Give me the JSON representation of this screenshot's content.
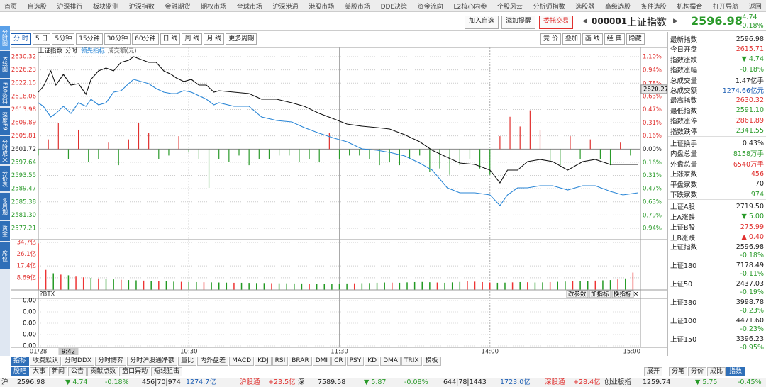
{
  "menu": [
    "首页",
    "自选股",
    "沪深排行",
    "板块监测",
    "沪深指数",
    "金融期货",
    "期权市场",
    "全球市场",
    "沪深港通",
    "港股市场",
    "美股市场",
    "DDE决策",
    "资金流向",
    "L2核心内参",
    "个股风云",
    "分析师指数",
    "选股器",
    "高级选股",
    "条件选股",
    "机构撮合",
    "打开导航",
    "返回"
  ],
  "sidebar_tabs": [
    "分时图",
    "K线图",
    "F10资料",
    "深度F9",
    "分时成交",
    "分价表",
    "多周期",
    "资金",
    "席位"
  ],
  "sidebar_selected": 0,
  "period_tabs": [
    "分 时",
    "5 日",
    "5分钟",
    "15分钟",
    "30分钟",
    "60分钟",
    "日 线",
    "周 线",
    "月 线",
    "更多周期"
  ],
  "period_selected": 0,
  "header": {
    "buttons": [
      "加入自选",
      "添加提醒",
      "委托交易"
    ],
    "code": "000001",
    "name": "上证指数",
    "price": "2596.98",
    "change": "-4.74",
    "change_pct": "-0.18%"
  },
  "tool_buttons": [
    "竞 价",
    "叠加",
    "画 线",
    "经 典",
    "隐藏"
  ],
  "chart_data": {
    "type": "line",
    "subtitle": "分时",
    "up_color": "#e0302e",
    "down_color": "#2a9a2a",
    "xlim": [
      0,
      240
    ],
    "xticks": [
      {
        "value": 0,
        "label": "01/28"
      },
      {
        "value": 60,
        "label": "10:30"
      },
      {
        "value": 120,
        "label": "11:30"
      },
      {
        "value": 180,
        "label": "14:00"
      },
      {
        "value": 240,
        "label": "15:00"
      }
    ],
    "cursor": {
      "value": 12,
      "label": "9:42"
    },
    "hover_value": 2620.27,
    "ylim": [
      2577.21,
      2630.32
    ],
    "yticks": [
      2630.32,
      2626.23,
      2622.15,
      2618.06,
      2613.98,
      2609.89,
      2605.81,
      2601.72,
      2597.64,
      2593.55,
      2589.47,
      2585.38,
      {
        "value": 2581.3,
        "label": "2581.30"
      },
      2577.21
    ],
    "y2lim": [
      -0.94,
      1.1
    ],
    "y2ticks": [
      {
        "value": 1.1,
        "label": "1.10%"
      },
      {
        "value": 0.94,
        "label": "0.94%"
      },
      {
        "value": 0.78,
        "label": "0.78%"
      },
      {
        "value": 0.63,
        "label": "0.63%"
      },
      {
        "value": 0.47,
        "label": "0.47%"
      },
      {
        "value": 0.31,
        "label": "0.31%"
      },
      {
        "value": 0.16,
        "label": "0.16%"
      },
      {
        "value": 0,
        "label": "0.00%"
      },
      {
        "value": -0.16,
        "label": "0.16%"
      },
      {
        "value": -0.31,
        "label": "0.31%"
      },
      {
        "value": -0.47,
        "label": "0.47%"
      },
      {
        "value": -0.63,
        "label": "0.63%"
      },
      {
        "value": -0.79,
        "label": "0.79%"
      },
      {
        "value": -0.94,
        "label": "0.94%"
      }
    ],
    "x": [
      0,
      2,
      5,
      7,
      10,
      13,
      16,
      19,
      21,
      24,
      27,
      30,
      33,
      36,
      38,
      41,
      44,
      47,
      50,
      53,
      55,
      58,
      61,
      64,
      67,
      70,
      72,
      78,
      84,
      89,
      95,
      101,
      106,
      112,
      118,
      123,
      129,
      135,
      140,
      146,
      152,
      157,
      163,
      168,
      174,
      180,
      184,
      187,
      191,
      195,
      200,
      205,
      211,
      217,
      222,
      228,
      233,
      239
    ],
    "series": [
      {
        "name": "上证指数",
        "color": "#111111",
        "values": [
          2619.35,
          2621.1,
          2625.93,
          2621.54,
          2624.83,
          2621.54,
          2621.98,
          2618.69,
          2623.3,
          2625.93,
          2626.81,
          2625.93,
          2628.56,
          2629.22,
          2630.32,
          2629.44,
          2628.56,
          2628.56,
          2625.93,
          2624.83,
          2623.74,
          2622.64,
          2623.3,
          2621.54,
          2621.54,
          2619.35,
          2619.79,
          2619.35,
          2618.91,
          2617.15,
          2617.15,
          2616.06,
          2614.96,
          2612.76,
          2611.01,
          2609.47,
          2608.81,
          2608.37,
          2607.93,
          2606.18,
          2603.98,
          2601.35,
          2599.15,
          2597.4,
          2596.96,
          2595.21,
          2591.26,
          2595.21,
          2595.21,
          2597.84,
          2598.5,
          2597.84,
          2595.21,
          2597.84,
          2598.5,
          2596.96,
          2596.96,
          2596.98
        ]
      },
      {
        "name": "领先指标",
        "color": "#2a86d6",
        "values": [
          2616.06,
          2614.96,
          2611.67,
          2612.76,
          2614.96,
          2612.76,
          2616.06,
          2614.96,
          2617.15,
          2615.4,
          2616.06,
          2619.35,
          2619.79,
          2621.98,
          2623.3,
          2622.64,
          2621.98,
          2620.44,
          2619.35,
          2618.91,
          2618.91,
          2619.79,
          2619.35,
          2618.25,
          2617.15,
          2615.4,
          2616.06,
          2614.96,
          2614.96,
          2611.67,
          2610.57,
          2610.13,
          2608.37,
          2606.62,
          2605.08,
          2603.98,
          2601.79,
          2601.35,
          2600.69,
          2599.59,
          2597.4,
          2595.21,
          2589.72,
          2588.18,
          2588.18,
          2587.52,
          2584.23,
          2587.52,
          2589.72,
          2589.72,
          2590.38,
          2590.38,
          2589.06,
          2590.38,
          2590.38,
          2588.62,
          2587.52,
          2588.18
        ]
      }
    ],
    "breadth": {
      "x": [
        0,
        4,
        8,
        12,
        16,
        20,
        24,
        28,
        32,
        36,
        40,
        44,
        48,
        52,
        56,
        60,
        64,
        68,
        72,
        76,
        80,
        84,
        88,
        92,
        96,
        100,
        104,
        108,
        112,
        116,
        120,
        124,
        128,
        132,
        136,
        140,
        144,
        148,
        152,
        156,
        160,
        164,
        168,
        172,
        176,
        180,
        184,
        188,
        192,
        196,
        200,
        204,
        208,
        212,
        216,
        220,
        224,
        228,
        232,
        236
      ],
      "values": [
        -2,
        3,
        8,
        -3,
        6,
        -4,
        -3,
        2,
        -5,
        3,
        8,
        5,
        -3,
        -2,
        4,
        -1,
        -3,
        -12,
        -3,
        -4,
        -2,
        -5,
        -3,
        -3,
        -2,
        -2,
        -4,
        -3,
        -4,
        5,
        -3,
        -2,
        -2,
        -3,
        -5,
        -4,
        -5,
        -3,
        -2,
        -7,
        -6,
        -8,
        -5,
        -3,
        -6,
        -8,
        4,
        10,
        7,
        12,
        6,
        -4,
        -5,
        4,
        -3,
        3,
        -3,
        -5,
        2,
        -2
      ]
    },
    "volume": {
      "name": "成交额(元)",
      "ylim": [
        0,
        34.7
      ],
      "yticks": [
        {
          "value": 34.7,
          "label": "34.7亿"
        },
        {
          "value": 26.1,
          "label": "26.1亿"
        },
        {
          "value": 17.4,
          "label": "17.4亿"
        },
        {
          "value": 8.69,
          "label": "8.69亿"
        }
      ],
      "x": [
        0,
        3,
        6,
        9,
        12,
        15,
        18,
        21,
        24,
        27,
        30,
        33,
        36,
        39,
        42,
        45,
        48,
        51,
        54,
        57,
        60,
        63,
        66,
        69,
        72,
        75,
        78,
        81,
        84,
        87,
        90,
        93,
        96,
        99,
        102,
        105,
        108,
        111,
        114,
        117,
        120,
        123,
        126,
        129,
        132,
        135,
        138,
        141,
        144,
        147,
        150,
        153,
        156,
        159,
        162,
        165,
        168,
        171,
        174,
        177,
        180,
        183,
        186,
        189,
        192,
        195,
        198,
        201,
        204,
        207,
        210,
        213,
        216,
        219,
        222,
        225,
        228,
        231,
        234,
        237
      ],
      "values": [
        34.0,
        14.5,
        12.0,
        11.0,
        10.5,
        9.5,
        9.0,
        8.6,
        8.2,
        7.8,
        7.5,
        7.2,
        7.0,
        6.8,
        6.6,
        6.4,
        6.2,
        6.0,
        5.8,
        5.7,
        5.6,
        5.5,
        5.4,
        5.3,
        5.2,
        5.1,
        5.0,
        5.0,
        4.9,
        4.8,
        4.8,
        4.7,
        4.6,
        4.6,
        4.5,
        4.5,
        4.4,
        4.4,
        4.3,
        4.3,
        4.4,
        4.5,
        4.6,
        4.7,
        4.8,
        5.0,
        5.2,
        5.1,
        5.0,
        5.3,
        5.5,
        5.6,
        5.4,
        5.2,
        5.0,
        5.3,
        5.6,
        6.0,
        5.8,
        5.5,
        5.2,
        5.0,
        5.1,
        5.3,
        5.5,
        5.4,
        5.2,
        5.3,
        5.5,
        5.7,
        5.9,
        6.0,
        6.2,
        6.4,
        6.6,
        6.8,
        7.0,
        7.5,
        8.2,
        12.5
      ],
      "colors": [
        "#e33",
        "#e33",
        "#292",
        "#e33",
        "#292",
        "#e33",
        "#e33",
        "#292",
        "#e33",
        "#292",
        "#292",
        "#e33",
        "#292",
        "#292",
        "#e33",
        "#292",
        "#e33",
        "#292",
        "#292",
        "#e33",
        "#292",
        "#292",
        "#e33",
        "#292",
        "#292",
        "#292",
        "#e33",
        "#292",
        "#292",
        "#292",
        "#292",
        "#e33",
        "#292",
        "#292",
        "#292",
        "#292",
        "#e33",
        "#292",
        "#292",
        "#292",
        "#292",
        "#292",
        "#e33",
        "#292",
        "#292",
        "#292",
        "#292",
        "#e33",
        "#292",
        "#292",
        "#292",
        "#292",
        "#292",
        "#e33",
        "#292",
        "#292",
        "#292",
        "#e33",
        "#e33",
        "#e33",
        "#e33",
        "#292",
        "#292",
        "#e33",
        "#292",
        "#e33",
        "#292",
        "#292",
        "#e33",
        "#292",
        "#292",
        "#e33",
        "#292",
        "#292",
        "#e33",
        "#292",
        "#292",
        "#e33",
        "#292",
        "#e33"
      ]
    }
  },
  "indicator": {
    "name": "?BTX",
    "buttons": [
      "改参数",
      "加指标",
      "换指标"
    ],
    "axis": [
      "0.00",
      "0.00",
      "0.00",
      "0.00",
      "0.00"
    ]
  },
  "indicator_tabs": [
    "指标",
    "收费默认",
    "分时DDX",
    "分时博弈",
    "分时沪股通净额",
    "量比",
    "内外盘差",
    "MACD",
    "KDJ",
    "RSI",
    "BRAR",
    "DMI",
    "CR",
    "PSY",
    "KD",
    "DMA",
    "TRIX",
    "模板"
  ],
  "indicator_selected": 0,
  "info_tabs": [
    "股吧",
    "大事",
    "新闻",
    "公告",
    "贡献点数",
    "盘口异动",
    "短线狙击"
  ],
  "info_selected": 0,
  "expand": "展开",
  "detail_tabs": [
    "分笔",
    "分价",
    "成比",
    "指数"
  ],
  "detail_selected": 3,
  "stats": [
    {
      "label": "最新指数",
      "value": "2596.98",
      "color": "#222222"
    },
    {
      "label": "今日开盘",
      "value": "2615.71",
      "color": "#e0302e"
    },
    {
      "label": "指数涨跌",
      "value": "▼ 4.74",
      "color": "#2a9a2a"
    },
    {
      "label": "指数涨幅",
      "value": "-0.18%",
      "color": "#2a9a2a"
    },
    {
      "label": "总成交量",
      "value": "1.47亿手",
      "color": "#222222"
    },
    {
      "label": "总成交额",
      "value": "1274.66亿元",
      "color": "#1e5fb4"
    },
    {
      "label": "最高指数",
      "value": "2630.32",
      "color": "#e0302e"
    },
    {
      "label": "最低指数",
      "value": "2591.10",
      "color": "#2a9a2a"
    },
    {
      "label": "指数涨停",
      "value": "2861.89",
      "color": "#e0302e"
    },
    {
      "label": "指数跌停",
      "value": "2341.55",
      "color": "#2a9a2a"
    },
    {
      "label": "上证换手",
      "value": "0.43%",
      "color": "#222222"
    },
    {
      "label": "内盘总量",
      "value": "8158万手",
      "color": "#2a9a2a"
    },
    {
      "label": "外盘总量",
      "value": "6540万手",
      "color": "#e0302e"
    },
    {
      "label": "上涨家数",
      "value": "456",
      "color": "#e0302e"
    },
    {
      "label": "平盘家数",
      "value": "70",
      "color": "#222222"
    },
    {
      "label": "下跌家数",
      "value": "974",
      "color": "#2a9a2a"
    },
    {
      "label": "上证A股",
      "value": "2719.50",
      "color": "#222222"
    },
    {
      "label": "上A涨跌",
      "value": "▼ 5.00",
      "color": "#2a9a2a"
    },
    {
      "label": "上证B股",
      "value": "275.99",
      "color": "#e0302e"
    },
    {
      "label": "上B涨跌",
      "value": "▲ 0.40",
      "color": "#e0302e"
    }
  ],
  "indices": [
    {
      "name": "上证指数",
      "price": "2596.98",
      "pct": "-0.18%"
    },
    {
      "name": "上证180",
      "price": "7178.49",
      "pct": "-0.11%"
    },
    {
      "name": "上证50",
      "price": "2437.03",
      "pct": "-0.19%"
    },
    {
      "name": "上证380",
      "price": "3998.78",
      "pct": "-0.23%"
    },
    {
      "name": "上证100",
      "price": "4471.60",
      "pct": "-0.23%"
    },
    {
      "name": "上证150",
      "price": "3396.23",
      "pct": "-0.95%"
    }
  ],
  "ticker": [
    {
      "text": "沪",
      "color": "#222222"
    },
    {
      "text": "2596.98",
      "color": "#222222"
    },
    {
      "text": "▼ 4.74",
      "color": "#2a9a2a"
    },
    {
      "text": "-0.18%",
      "color": "#2a9a2a"
    },
    {
      "text": "456|70|974",
      "color": "#222222"
    },
    {
      "text": "1274.7亿",
      "color": "#1e5fb4"
    },
    {
      "text": "沪股通",
      "color": "#e0302e"
    },
    {
      "text": "+23.5亿",
      "color": "#e0302e"
    },
    {
      "text": "深",
      "color": "#222222"
    },
    {
      "text": "7589.58",
      "color": "#222222"
    },
    {
      "text": "▼ 5.87",
      "color": "#2a9a2a"
    },
    {
      "text": "-0.08%",
      "color": "#2a9a2a"
    },
    {
      "text": "644|78|1443",
      "color": "#222222"
    },
    {
      "text": "1723.0亿",
      "color": "#1e5fb4"
    },
    {
      "text": "深股通",
      "color": "#e0302e"
    },
    {
      "text": "+28.4亿",
      "color": "#e0302e"
    },
    {
      "text": "创业板指",
      "color": "#222222"
    },
    {
      "text": "1259.74",
      "color": "#222222"
    },
    {
      "text": "▼ 5.75",
      "color": "#2a9a2a"
    },
    {
      "text": "-0.45%",
      "color": "#2a9a2a"
    }
  ]
}
